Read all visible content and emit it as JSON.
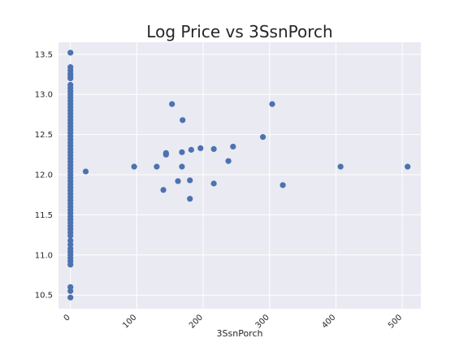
{
  "chart_data": {
    "type": "scatter",
    "title": "Log Price vs 3SsnPorch",
    "xlabel": "3SsnPorch",
    "ylabel": "",
    "xlim": [
      -18,
      528
    ],
    "ylim": [
      10.33,
      13.65
    ],
    "xticks": [
      0,
      100,
      200,
      300,
      400,
      500
    ],
    "yticks": [
      10.5,
      11.0,
      11.5,
      12.0,
      12.5,
      13.0,
      13.5
    ],
    "ytick_labels": [
      "10.5",
      "11.0",
      "11.5",
      "12.0",
      "12.5",
      "13.0",
      "13.5"
    ],
    "grid": true,
    "colors": {
      "marker": "#4c72b0",
      "plot_bg": "#eaeaf2",
      "grid": "#ffffff"
    },
    "points": [
      {
        "x": 0,
        "y": 13.52
      },
      {
        "x": 0,
        "y": 13.34
      },
      {
        "x": 0,
        "y": 13.3
      },
      {
        "x": 0,
        "y": 13.26
      },
      {
        "x": 0,
        "y": 13.23
      },
      {
        "x": 0,
        "y": 13.2
      },
      {
        "x": 0,
        "y": 13.12
      },
      {
        "x": 0,
        "y": 13.08
      },
      {
        "x": 0,
        "y": 13.04
      },
      {
        "x": 0,
        "y": 13.0
      },
      {
        "x": 0,
        "y": 12.96
      },
      {
        "x": 0,
        "y": 12.92
      },
      {
        "x": 0,
        "y": 12.88
      },
      {
        "x": 0,
        "y": 12.84
      },
      {
        "x": 0,
        "y": 12.8
      },
      {
        "x": 0,
        "y": 12.76
      },
      {
        "x": 0,
        "y": 12.72
      },
      {
        "x": 0,
        "y": 12.68
      },
      {
        "x": 0,
        "y": 12.64
      },
      {
        "x": 0,
        "y": 12.6
      },
      {
        "x": 0,
        "y": 12.56
      },
      {
        "x": 0,
        "y": 12.52
      },
      {
        "x": 0,
        "y": 12.48
      },
      {
        "x": 0,
        "y": 12.44
      },
      {
        "x": 0,
        "y": 12.4
      },
      {
        "x": 0,
        "y": 12.36
      },
      {
        "x": 0,
        "y": 12.32
      },
      {
        "x": 0,
        "y": 12.28
      },
      {
        "x": 0,
        "y": 12.24
      },
      {
        "x": 0,
        "y": 12.2
      },
      {
        "x": 0,
        "y": 12.16
      },
      {
        "x": 0,
        "y": 12.12
      },
      {
        "x": 0,
        "y": 12.08
      },
      {
        "x": 0,
        "y": 12.04
      },
      {
        "x": 0,
        "y": 12.0
      },
      {
        "x": 0,
        "y": 11.96
      },
      {
        "x": 0,
        "y": 11.92
      },
      {
        "x": 0,
        "y": 11.88
      },
      {
        "x": 0,
        "y": 11.84
      },
      {
        "x": 0,
        "y": 11.8
      },
      {
        "x": 0,
        "y": 11.76
      },
      {
        "x": 0,
        "y": 11.72
      },
      {
        "x": 0,
        "y": 11.68
      },
      {
        "x": 0,
        "y": 11.64
      },
      {
        "x": 0,
        "y": 11.6
      },
      {
        "x": 0,
        "y": 11.56
      },
      {
        "x": 0,
        "y": 11.52
      },
      {
        "x": 0,
        "y": 11.48
      },
      {
        "x": 0,
        "y": 11.44
      },
      {
        "x": 0,
        "y": 11.4
      },
      {
        "x": 0,
        "y": 11.36
      },
      {
        "x": 0,
        "y": 11.32
      },
      {
        "x": 0,
        "y": 11.28
      },
      {
        "x": 0,
        "y": 11.24
      },
      {
        "x": 0,
        "y": 11.18
      },
      {
        "x": 0,
        "y": 11.13
      },
      {
        "x": 0,
        "y": 11.08
      },
      {
        "x": 0,
        "y": 11.04
      },
      {
        "x": 0,
        "y": 11.0
      },
      {
        "x": 0,
        "y": 10.96
      },
      {
        "x": 0,
        "y": 10.92
      },
      {
        "x": 0,
        "y": 10.88
      },
      {
        "x": 0,
        "y": 10.6
      },
      {
        "x": 0,
        "y": 10.55
      },
      {
        "x": 0,
        "y": 10.47
      },
      {
        "x": 23,
        "y": 12.04
      },
      {
        "x": 96,
        "y": 12.1
      },
      {
        "x": 130,
        "y": 12.1
      },
      {
        "x": 140,
        "y": 11.81
      },
      {
        "x": 144,
        "y": 12.27
      },
      {
        "x": 144,
        "y": 12.25
      },
      {
        "x": 153,
        "y": 12.88
      },
      {
        "x": 162,
        "y": 11.92
      },
      {
        "x": 168,
        "y": 12.28
      },
      {
        "x": 168,
        "y": 12.1
      },
      {
        "x": 169,
        "y": 12.68
      },
      {
        "x": 180,
        "y": 11.93
      },
      {
        "x": 180,
        "y": 11.7
      },
      {
        "x": 182,
        "y": 12.31
      },
      {
        "x": 196,
        "y": 12.33
      },
      {
        "x": 216,
        "y": 12.32
      },
      {
        "x": 216,
        "y": 11.89
      },
      {
        "x": 238,
        "y": 12.17
      },
      {
        "x": 245,
        "y": 12.35
      },
      {
        "x": 290,
        "y": 12.47
      },
      {
        "x": 304,
        "y": 12.88
      },
      {
        "x": 320,
        "y": 11.87
      },
      {
        "x": 407,
        "y": 12.1
      },
      {
        "x": 508,
        "y": 12.1
      }
    ]
  }
}
